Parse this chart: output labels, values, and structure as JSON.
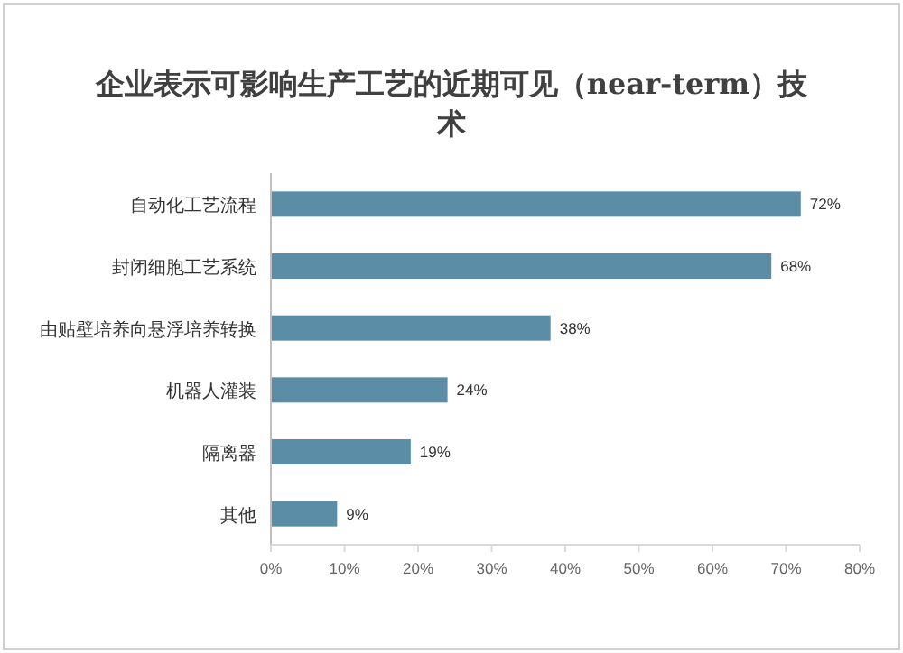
{
  "chart_data": {
    "type": "bar",
    "orientation": "horizontal",
    "title": "企业表示可影响生产工艺的近期可见（near-term）技术",
    "categories": [
      "自动化工艺流程",
      "封闭细胞工艺系统",
      "由贴壁培养向悬浮培养转换",
      "机器人灌装",
      "隔离器",
      "其他"
    ],
    "values": [
      72,
      68,
      38,
      24,
      19,
      9
    ],
    "color": "#5b8ea6",
    "value_labels": [
      "72%",
      "68%",
      "38%",
      "24%",
      "19%",
      "9%"
    ],
    "xlim": [
      0,
      80
    ],
    "xticks": [
      {
        "value": 0,
        "label": "0%"
      },
      {
        "value": 10,
        "label": "10%"
      },
      {
        "value": 20,
        "label": "20%"
      },
      {
        "value": 30,
        "label": "30%"
      },
      {
        "value": 40,
        "label": "40%"
      },
      {
        "value": 50,
        "label": "50%"
      },
      {
        "value": 60,
        "label": "60%"
      },
      {
        "value": 70,
        "label": "70%"
      },
      {
        "value": 80,
        "label": "80%"
      }
    ]
  }
}
